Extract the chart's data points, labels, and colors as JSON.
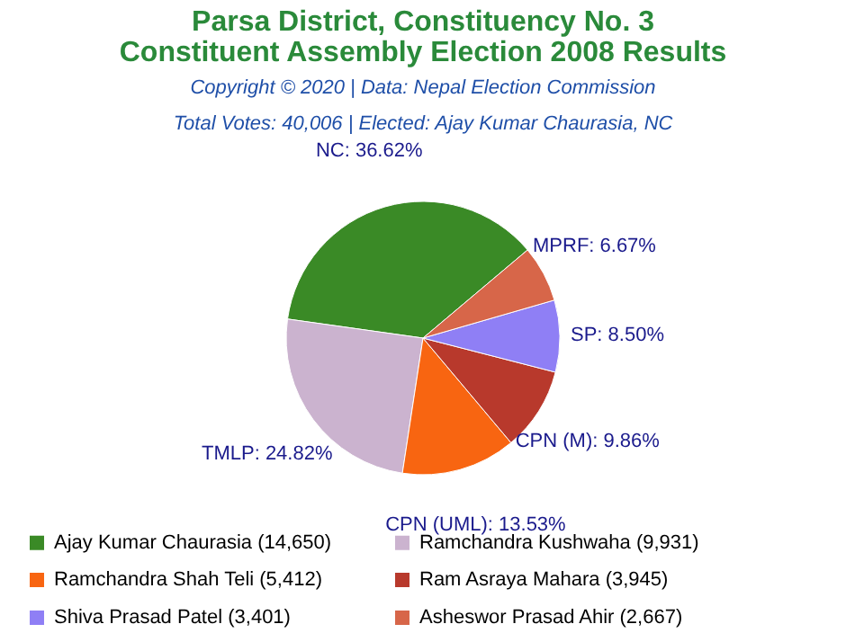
{
  "chart_data": {
    "type": "pie",
    "title": "Parsa District, Constituency No. 3\nConstituent Assembly Election 2008 Results",
    "subtitle": "Copyright © 2020 | Data: Nepal Election Commission\nTotal Votes: 40,006 | Elected: Ajay Kumar Chaurasia, NC",
    "categories": [
      "Ajay Kumar Chaurasia (14,650)",
      "Ramchandra Kushwaha (9,931)",
      "Ramchandra Shah Teli (5,412)",
      "Ram Asraya Mahara (3,945)",
      "Shiva Prasad Patel (3,401)",
      "Asheswor Prasad Ahir (2,667)"
    ],
    "values": [
      36.62,
      24.82,
      13.53,
      9.86,
      8.5,
      6.67
    ],
    "value_labels": [
      "NC: 36.62%",
      "TMLP: 24.82%",
      "CPN (UML): 13.53%",
      "CPN (M): 9.86%",
      "SP: 8.50%",
      "MPRF: 6.67%"
    ],
    "colors": [
      "#3a8a26",
      "#cbb3cf",
      "#f86511",
      "#b8392c",
      "#8f7ff5",
      "#d76649"
    ],
    "legend": "bottom"
  }
}
